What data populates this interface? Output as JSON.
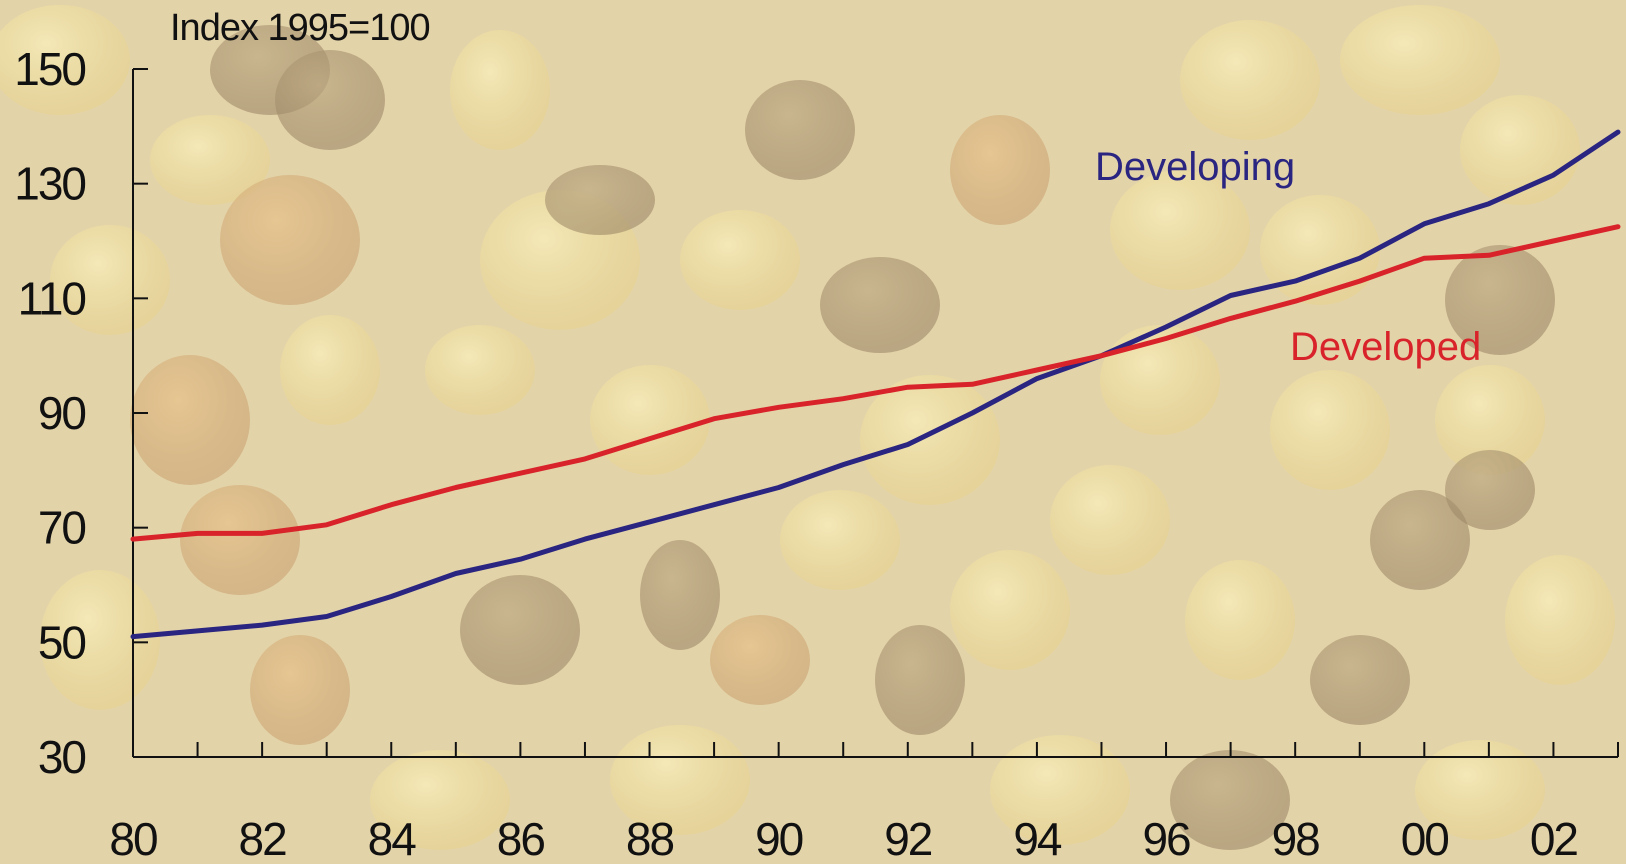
{
  "chart_data": {
    "type": "line",
    "unit_label": "Index 1995=100",
    "x": [
      1980,
      1981,
      1982,
      1983,
      1984,
      1985,
      1986,
      1987,
      1988,
      1989,
      1990,
      1991,
      1992,
      1993,
      1994,
      1995,
      1996,
      1997,
      1998,
      1999,
      2000,
      2001,
      2002,
      2003
    ],
    "x_tick_labels": [
      "80",
      "82",
      "84",
      "86",
      "88",
      "90",
      "92",
      "94",
      "96",
      "98",
      "00",
      "02"
    ],
    "y_tick_labels": [
      "30",
      "50",
      "70",
      "90",
      "110",
      "130",
      "150"
    ],
    "ylim": [
      30,
      150
    ],
    "grid": false,
    "series": [
      {
        "name": "Developing",
        "color": "#2a2580",
        "values": [
          51,
          52,
          53,
          54.5,
          58,
          62,
          64.5,
          68,
          71,
          74,
          77,
          81,
          84.5,
          90,
          96,
          100,
          105,
          110.5,
          113,
          117,
          123,
          126.5,
          131.5,
          139
        ]
      },
      {
        "name": "Developed",
        "color": "#d9232a",
        "values": [
          68,
          69,
          69,
          70.5,
          74,
          77,
          79.5,
          82,
          85.5,
          89,
          91,
          92.5,
          94.5,
          95,
          97.5,
          100,
          103,
          106.5,
          109.5,
          113,
          117,
          117.5,
          120,
          122.5
        ]
      }
    ]
  }
}
